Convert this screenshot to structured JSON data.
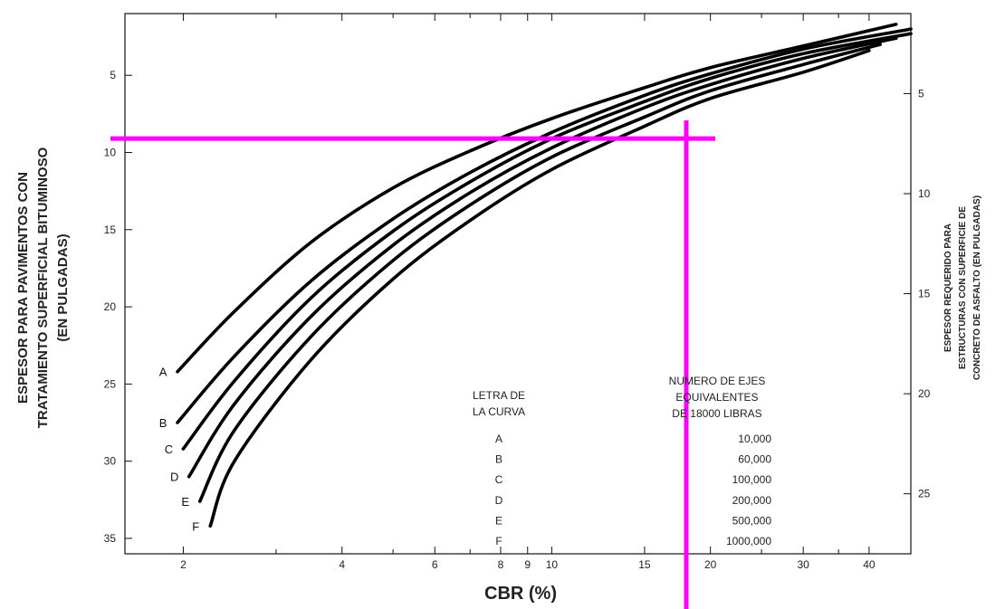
{
  "chart_data": {
    "type": "line",
    "x_scale": "log",
    "x_range": [
      1.55,
      48
    ],
    "y_left_range": [
      1,
      36
    ],
    "y_left_direction": "increasing downward",
    "y_right_range": [
      1,
      28
    ],
    "xlabel": "CBR (%)",
    "ylabel_left": [
      "ESPESOR PARA PAVIMENTOS CON",
      "TRATAMIENTO SUPERFICIAL BITUMINOSO",
      "(EN PULGADAS)"
    ],
    "ylabel_right": [
      "ESPESOR REQUERIDO PARA",
      "ESTRUCTURAS CON SUPERFICIE DE",
      "CONCRETO DE ASFALTO (EN PULGADAS)"
    ],
    "x_ticks": [
      2,
      4,
      6,
      8,
      9,
      10,
      15,
      20,
      30,
      40
    ],
    "x_minor_ticks": [
      3,
      5,
      7,
      25,
      35
    ],
    "y_left_ticks": [
      {
        "value": 5,
        "label": "5"
      },
      {
        "value": 10,
        "label": "10"
      },
      {
        "value": 15,
        "label": "15"
      },
      {
        "value": 20,
        "label": "20"
      },
      {
        "value": 25,
        "label": "25"
      },
      {
        "value": 30,
        "label": "30"
      },
      {
        "value": 35,
        "label": "35"
      }
    ],
    "y_right_ticks": [
      {
        "value": 5,
        "label": "5"
      },
      {
        "value": 10,
        "label": "10"
      },
      {
        "value": 15,
        "label": "15"
      },
      {
        "value": 20,
        "label": "20"
      },
      {
        "value": 25,
        "label": "25"
      }
    ],
    "series": [
      {
        "name": "A",
        "x": [
          1.95,
          2.5,
          3.5,
          5,
          7,
          10,
          15,
          20,
          30,
          45
        ],
        "y": [
          24.2,
          20.3,
          15.8,
          12.3,
          9.9,
          7.8,
          5.8,
          4.5,
          3.1,
          1.7
        ]
      },
      {
        "name": "B",
        "x": [
          1.95,
          2.5,
          3.5,
          5,
          7,
          10,
          15,
          20,
          30,
          48
        ],
        "y": [
          27.5,
          23.2,
          18.3,
          14.3,
          11.3,
          8.7,
          6.3,
          4.9,
          3.3,
          2.0
        ]
      },
      {
        "name": "C",
        "x": [
          2.0,
          2.5,
          3.5,
          5,
          7,
          10,
          15,
          20,
          30,
          48
        ],
        "y": [
          29.2,
          24.8,
          19.4,
          15.1,
          11.9,
          9.1,
          6.7,
          5.2,
          3.6,
          2.3
        ]
      },
      {
        "name": "D",
        "x": [
          2.05,
          2.5,
          3.5,
          5,
          7,
          10,
          15,
          20,
          30,
          45
        ],
        "y": [
          31.0,
          26.3,
          20.6,
          16.0,
          12.6,
          9.7,
          7.1,
          5.6,
          3.9,
          2.6
        ]
      },
      {
        "name": "E",
        "x": [
          2.15,
          2.5,
          3.5,
          5,
          7,
          10,
          15,
          20,
          30,
          42
        ],
        "y": [
          32.6,
          28.0,
          21.9,
          17.0,
          13.4,
          10.3,
          7.7,
          6.0,
          4.3,
          3.0
        ]
      },
      {
        "name": "F",
        "x": [
          2.25,
          2.5,
          3.5,
          5,
          7,
          10,
          15,
          20,
          30,
          40
        ],
        "y": [
          34.2,
          30.0,
          23.4,
          18.2,
          14.4,
          11.1,
          8.3,
          6.5,
          4.8,
          3.4
        ]
      }
    ],
    "legend": {
      "header_letter": [
        "LETRA DE",
        "LA CURVA"
      ],
      "header_axles": [
        "NUMERO DE EJES",
        "EQUIVALENTES",
        "DE 18000 LIBRAS"
      ],
      "rows": [
        {
          "letter": "A",
          "axles": "10,000"
        },
        {
          "letter": "B",
          "axles": "60,000"
        },
        {
          "letter": "C",
          "axles": "100,000"
        },
        {
          "letter": "D",
          "axles": "200,000"
        },
        {
          "letter": "E",
          "axles": "500,000"
        },
        {
          "letter": "F",
          "axles": "1000,000"
        }
      ]
    },
    "annotation": {
      "color": "#ff00ff",
      "vertical_x": 18,
      "horizontal_y": 9.1
    }
  }
}
